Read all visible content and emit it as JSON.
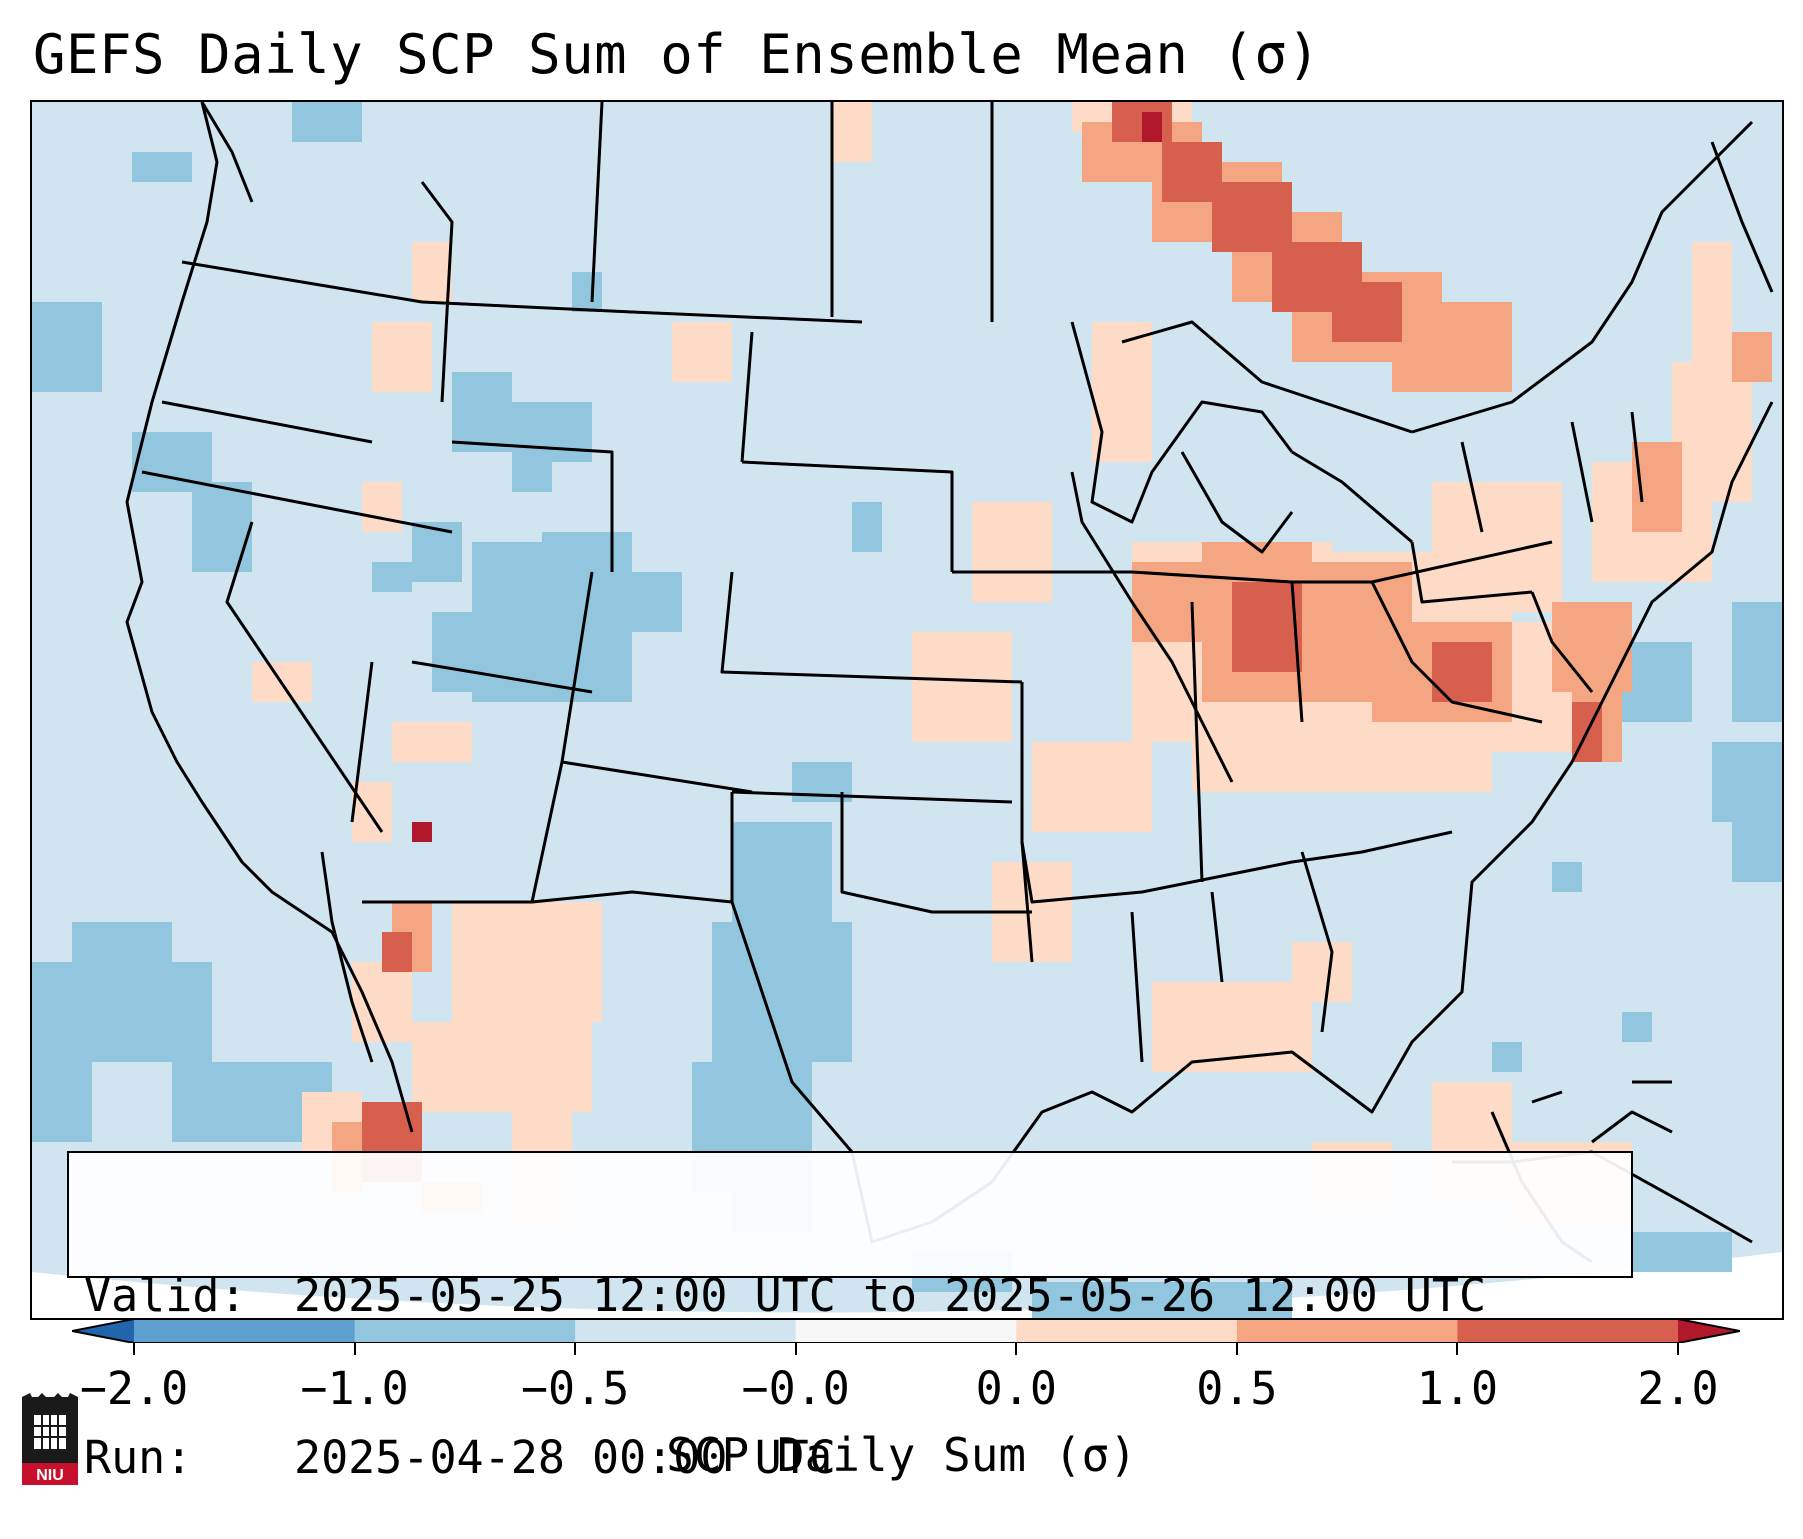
{
  "title": "GEFS Daily SCP Sum of Ensemble Mean (σ)",
  "info": {
    "valid_label": "Valid:",
    "valid_value": "2025-05-25 12:00 UTC to 2025-05-26 12:00 UTC",
    "run_label": "Run:",
    "run_value": "2025-04-28 00:00 UTC"
  },
  "colorbar": {
    "label": "SCP Daily Sum (σ)",
    "tick_labels": [
      "−2.0",
      "−1.0",
      "−0.5",
      "−0.0",
      "0.0",
      "0.5",
      "1.0",
      "2.0"
    ],
    "bins": [
      {
        "from": -2.0,
        "to": -1.0,
        "color": "#5d9fcf"
      },
      {
        "from": -1.0,
        "to": -0.5,
        "color": "#92c5de"
      },
      {
        "from": -0.5,
        "to": -0.0,
        "color": "#d1e5f0"
      },
      {
        "from": -0.0,
        "to": 0.0,
        "color": "#f7f7f7"
      },
      {
        "from": 0.0,
        "to": 0.5,
        "color": "#fddbc7"
      },
      {
        "from": 0.5,
        "to": 1.0,
        "color": "#f4a582"
      },
      {
        "from": 1.0,
        "to": 2.0,
        "color": "#d6604d"
      }
    ],
    "under_color": "#2166ac",
    "over_color": "#b2182b"
  },
  "map": {
    "background_color": "#d1e5f0",
    "extend": "contiguous United States with parts of Canada, Mexico and the Gulf of Mexico"
  },
  "logo": {
    "text": "NIU"
  }
}
